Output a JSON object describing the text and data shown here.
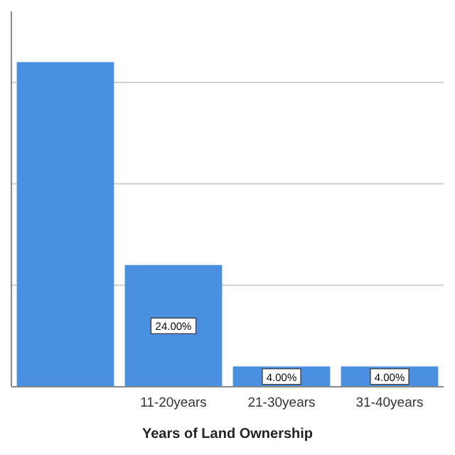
{
  "chart_data": {
    "type": "bar",
    "xlabel": "Years of Land Ownership",
    "categories": [
      null,
      "11-20years",
      "21-30years",
      "31-40years"
    ],
    "values": [
      64,
      24,
      4,
      4
    ],
    "value_labels": [
      null,
      "24.00%",
      "4.00%",
      "4.00%"
    ],
    "color": "#4a8fe0",
    "ylim": [
      0,
      74
    ],
    "yticks": [
      {
        "value": 0,
        "label": null
      },
      {
        "value": 20,
        "label": null
      },
      {
        "value": 40,
        "label": null
      },
      {
        "value": 60,
        "label": null
      }
    ],
    "grid": "y",
    "tick_labels": "x"
  }
}
